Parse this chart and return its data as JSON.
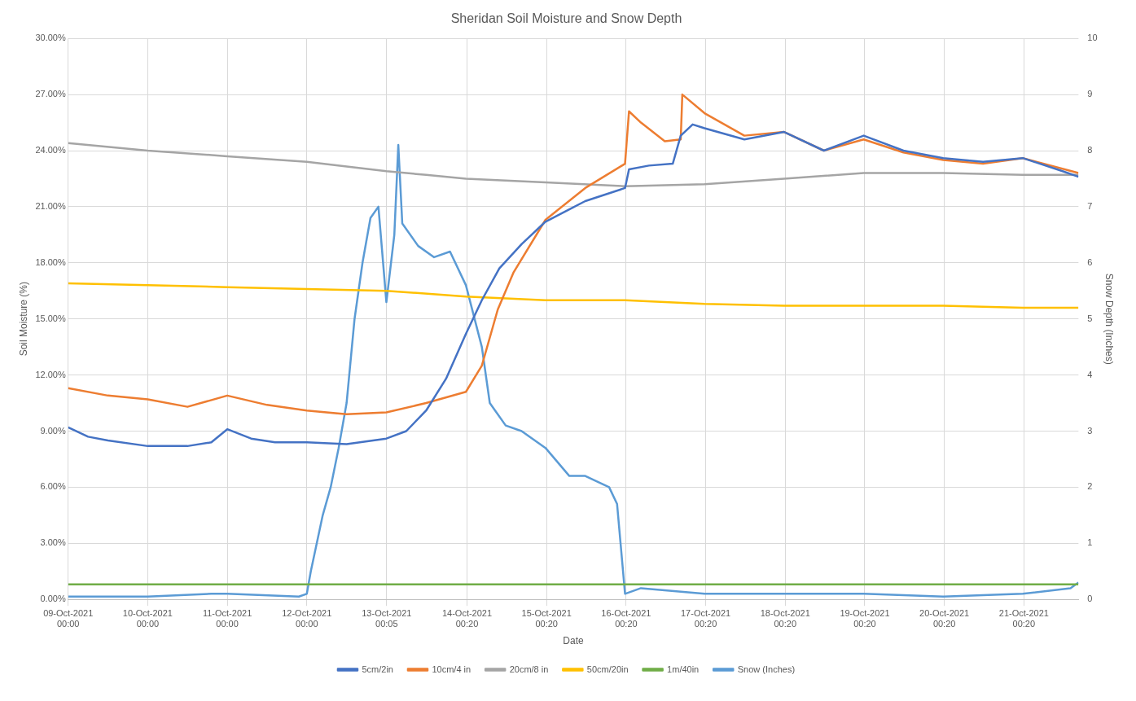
{
  "chart_data": {
    "type": "line",
    "title": "Sheridan Soil Moisture and Snow Depth",
    "xlabel": "Date",
    "ylabel": "Soil Moisture (%)",
    "y2label": "Snow Depth (Inches)",
    "xlim": [
      "2021-10-09T00:00",
      "2021-10-21T16:48"
    ],
    "xticks": [
      {
        "value": "2021-10-09T00:00",
        "label": "09-Oct-2021 00:00"
      },
      {
        "value": "2021-10-10T00:00",
        "label": "10-Oct-2021 00:00"
      },
      {
        "value": "2021-10-11T00:00",
        "label": "11-Oct-2021 00:00"
      },
      {
        "value": "2021-10-12T00:00",
        "label": "12-Oct-2021 00:00"
      },
      {
        "value": "2021-10-13T00:05",
        "label": "13-Oct-2021 00:05"
      },
      {
        "value": "2021-10-14T00:20",
        "label": "14-Oct-2021 00:20"
      },
      {
        "value": "2021-10-15T00:20",
        "label": "15-Oct-2021 00:20"
      },
      {
        "value": "2021-10-16T00:20",
        "label": "16-Oct-2021 00:20"
      },
      {
        "value": "2021-10-17T00:20",
        "label": "17-Oct-2021 00:20"
      },
      {
        "value": "2021-10-18T00:20",
        "label": "18-Oct-2021 00:20"
      },
      {
        "value": "2021-10-19T00:20",
        "label": "19-Oct-2021 00:20"
      },
      {
        "value": "2021-10-20T00:20",
        "label": "20-Oct-2021 00:20"
      },
      {
        "value": "2021-10-21T00:20",
        "label": "21-Oct-2021 00:20"
      }
    ],
    "ylim": [
      0,
      30
    ],
    "yticks": [
      {
        "value": 0,
        "label": "0.00%"
      },
      {
        "value": 3,
        "label": "3.00%"
      },
      {
        "value": 6,
        "label": "6.00%"
      },
      {
        "value": 9,
        "label": "9.00%"
      },
      {
        "value": 12,
        "label": "12.00%"
      },
      {
        "value": 15,
        "label": "15.00%"
      },
      {
        "value": 18,
        "label": "18.00%"
      },
      {
        "value": 21,
        "label": "21.00%"
      },
      {
        "value": 24,
        "label": "24.00%"
      },
      {
        "value": 27,
        "label": "27.00%"
      },
      {
        "value": 30,
        "label": "30.00%"
      }
    ],
    "y2lim": [
      0,
      10
    ],
    "y2ticks": [
      0,
      1,
      2,
      3,
      4,
      5,
      6,
      7,
      8,
      9,
      10
    ],
    "grid": true,
    "legend": "bottom",
    "marker": "none",
    "series": [
      {
        "name": "5cm/2in",
        "color": "#4472c4",
        "x": [
          "2021-10-09T00:00",
          "2021-10-09T06:00",
          "2021-10-09T12:00",
          "2021-10-10T00:00",
          "2021-10-10T12:00",
          "2021-10-10T19:12",
          "2021-10-11T00:00",
          "2021-10-11T07:12",
          "2021-10-11T14:24",
          "2021-10-12T00:00",
          "2021-10-12T12:00",
          "2021-10-13T00:00",
          "2021-10-13T06:00",
          "2021-10-13T12:00",
          "2021-10-13T18:00",
          "2021-10-14T00:00",
          "2021-10-14T04:48",
          "2021-10-14T10:05",
          "2021-10-14T16:48",
          "2021-10-15T00:00",
          "2021-10-15T12:00",
          "2021-10-16T00:00",
          "2021-10-16T01:12",
          "2021-10-16T07:12",
          "2021-10-16T14:24",
          "2021-10-16T16:48",
          "2021-10-16T20:24",
          "2021-10-17T00:00",
          "2021-10-17T12:00",
          "2021-10-18T00:00",
          "2021-10-18T12:00",
          "2021-10-19T00:00",
          "2021-10-19T12:00",
          "2021-10-20T00:00",
          "2021-10-20T12:00",
          "2021-10-21T00:00",
          "2021-10-21T12:00",
          "2021-10-21T16:48"
        ],
        "values": [
          9.2,
          8.7,
          8.5,
          8.2,
          8.2,
          8.4,
          9.1,
          8.6,
          8.4,
          8.4,
          8.3,
          8.6,
          9.0,
          10.1,
          11.8,
          14.2,
          16.0,
          17.7,
          19.0,
          20.2,
          21.3,
          22.0,
          23.0,
          23.2,
          23.3,
          24.8,
          25.4,
          25.2,
          24.6,
          25.0,
          24.0,
          24.8,
          24.0,
          23.6,
          23.4,
          23.6,
          22.9,
          22.6
        ]
      },
      {
        "name": "10cm/4 in",
        "color": "#ed7d31",
        "x": [
          "2021-10-09T00:00",
          "2021-10-09T12:00",
          "2021-10-10T00:00",
          "2021-10-10T12:00",
          "2021-10-11T00:00",
          "2021-10-11T12:00",
          "2021-10-12T00:00",
          "2021-10-12T12:00",
          "2021-10-13T00:00",
          "2021-10-13T12:00",
          "2021-10-14T00:00",
          "2021-10-14T04:48",
          "2021-10-14T09:36",
          "2021-10-14T14:24",
          "2021-10-15T00:00",
          "2021-10-15T12:00",
          "2021-10-16T00:00",
          "2021-10-16T01:12",
          "2021-10-16T04:48",
          "2021-10-16T12:00",
          "2021-10-16T16:48",
          "2021-10-16T17:17",
          "2021-10-17T00:00",
          "2021-10-17T12:00",
          "2021-10-18T00:00",
          "2021-10-18T12:00",
          "2021-10-19T00:00",
          "2021-10-19T12:00",
          "2021-10-20T00:00",
          "2021-10-20T12:00",
          "2021-10-21T00:00",
          "2021-10-21T16:48"
        ],
        "values": [
          11.3,
          10.9,
          10.7,
          10.3,
          10.9,
          10.4,
          10.1,
          9.9,
          10.0,
          10.5,
          11.1,
          12.5,
          15.5,
          17.5,
          20.3,
          22.0,
          23.3,
          26.1,
          25.5,
          24.5,
          24.6,
          27.0,
          26.0,
          24.8,
          25.0,
          24.0,
          24.6,
          23.9,
          23.5,
          23.3,
          23.6,
          22.8
        ]
      },
      {
        "name": "20cm/8 in",
        "color": "#a5a5a5",
        "x": [
          "2021-10-09T00:00",
          "2021-10-10T00:00",
          "2021-10-11T00:00",
          "2021-10-12T00:00",
          "2021-10-13T00:00",
          "2021-10-13T12:00",
          "2021-10-14T00:00",
          "2021-10-15T00:00",
          "2021-10-16T00:00",
          "2021-10-17T00:00",
          "2021-10-18T00:00",
          "2021-10-19T00:00",
          "2021-10-20T00:00",
          "2021-10-21T00:00",
          "2021-10-21T16:48"
        ],
        "values": [
          24.4,
          24.0,
          23.7,
          23.4,
          22.9,
          22.7,
          22.5,
          22.3,
          22.1,
          22.2,
          22.5,
          22.8,
          22.8,
          22.7,
          22.7
        ]
      },
      {
        "name": "50cm/20in",
        "color": "#ffc000",
        "x": [
          "2021-10-09T00:00",
          "2021-10-10T00:00",
          "2021-10-11T00:00",
          "2021-10-12T00:00",
          "2021-10-13T00:00",
          "2021-10-14T00:00",
          "2021-10-15T00:00",
          "2021-10-16T00:00",
          "2021-10-17T00:00",
          "2021-10-18T00:00",
          "2021-10-19T00:00",
          "2021-10-20T00:00",
          "2021-10-21T00:00",
          "2021-10-21T16:48"
        ],
        "values": [
          16.9,
          16.8,
          16.7,
          16.6,
          16.5,
          16.2,
          16.0,
          16.0,
          15.8,
          15.7,
          15.7,
          15.7,
          15.6,
          15.6
        ]
      },
      {
        "name": "1m/40in",
        "color": "#70ad47",
        "x": [
          "2021-10-09T00:00",
          "2021-10-12T00:00",
          "2021-10-15T00:00",
          "2021-10-18T00:00",
          "2021-10-21T16:48"
        ],
        "values": [
          0.8,
          0.8,
          0.8,
          0.8,
          0.8
        ]
      },
      {
        "name": "Snow (Inches)",
        "color": "#5b9bd5",
        "axis": "y2",
        "x": [
          "2021-10-09T00:00",
          "2021-10-10T00:00",
          "2021-10-10T19:12",
          "2021-10-11T00:00",
          "2021-10-11T21:36",
          "2021-10-12T00:00",
          "2021-10-12T01:12",
          "2021-10-12T04:48",
          "2021-10-12T07:12",
          "2021-10-12T09:36",
          "2021-10-12T12:00",
          "2021-10-12T14:24",
          "2021-10-12T16:48",
          "2021-10-12T19:12",
          "2021-10-12T21:36",
          "2021-10-13T00:00",
          "2021-10-13T02:24",
          "2021-10-13T03:36",
          "2021-10-13T04:48",
          "2021-10-13T09:36",
          "2021-10-13T14:24",
          "2021-10-13T19:12",
          "2021-10-14T00:00",
          "2021-10-14T04:48",
          "2021-10-14T07:12",
          "2021-10-14T12:00",
          "2021-10-14T16:48",
          "2021-10-15T00:00",
          "2021-10-15T07:12",
          "2021-10-15T12:00",
          "2021-10-15T19:12",
          "2021-10-15T21:36",
          "2021-10-16T00:00",
          "2021-10-16T04:48",
          "2021-10-17T00:00",
          "2021-10-18T00:00",
          "2021-10-19T00:00",
          "2021-10-20T00:00",
          "2021-10-21T00:00",
          "2021-10-21T14:24",
          "2021-10-21T16:48"
        ],
        "values": [
          0.05,
          0.05,
          0.1,
          0.1,
          0.05,
          0.1,
          0.5,
          1.5,
          2.0,
          2.7,
          3.5,
          5.0,
          6.0,
          6.8,
          7.0,
          5.3,
          6.5,
          8.1,
          6.7,
          6.3,
          6.1,
          6.2,
          5.6,
          4.5,
          3.5,
          3.1,
          3.0,
          2.7,
          2.2,
          2.2,
          2.0,
          1.7,
          0.1,
          0.2,
          0.1,
          0.1,
          0.1,
          0.05,
          0.1,
          0.2,
          0.3
        ]
      }
    ]
  }
}
